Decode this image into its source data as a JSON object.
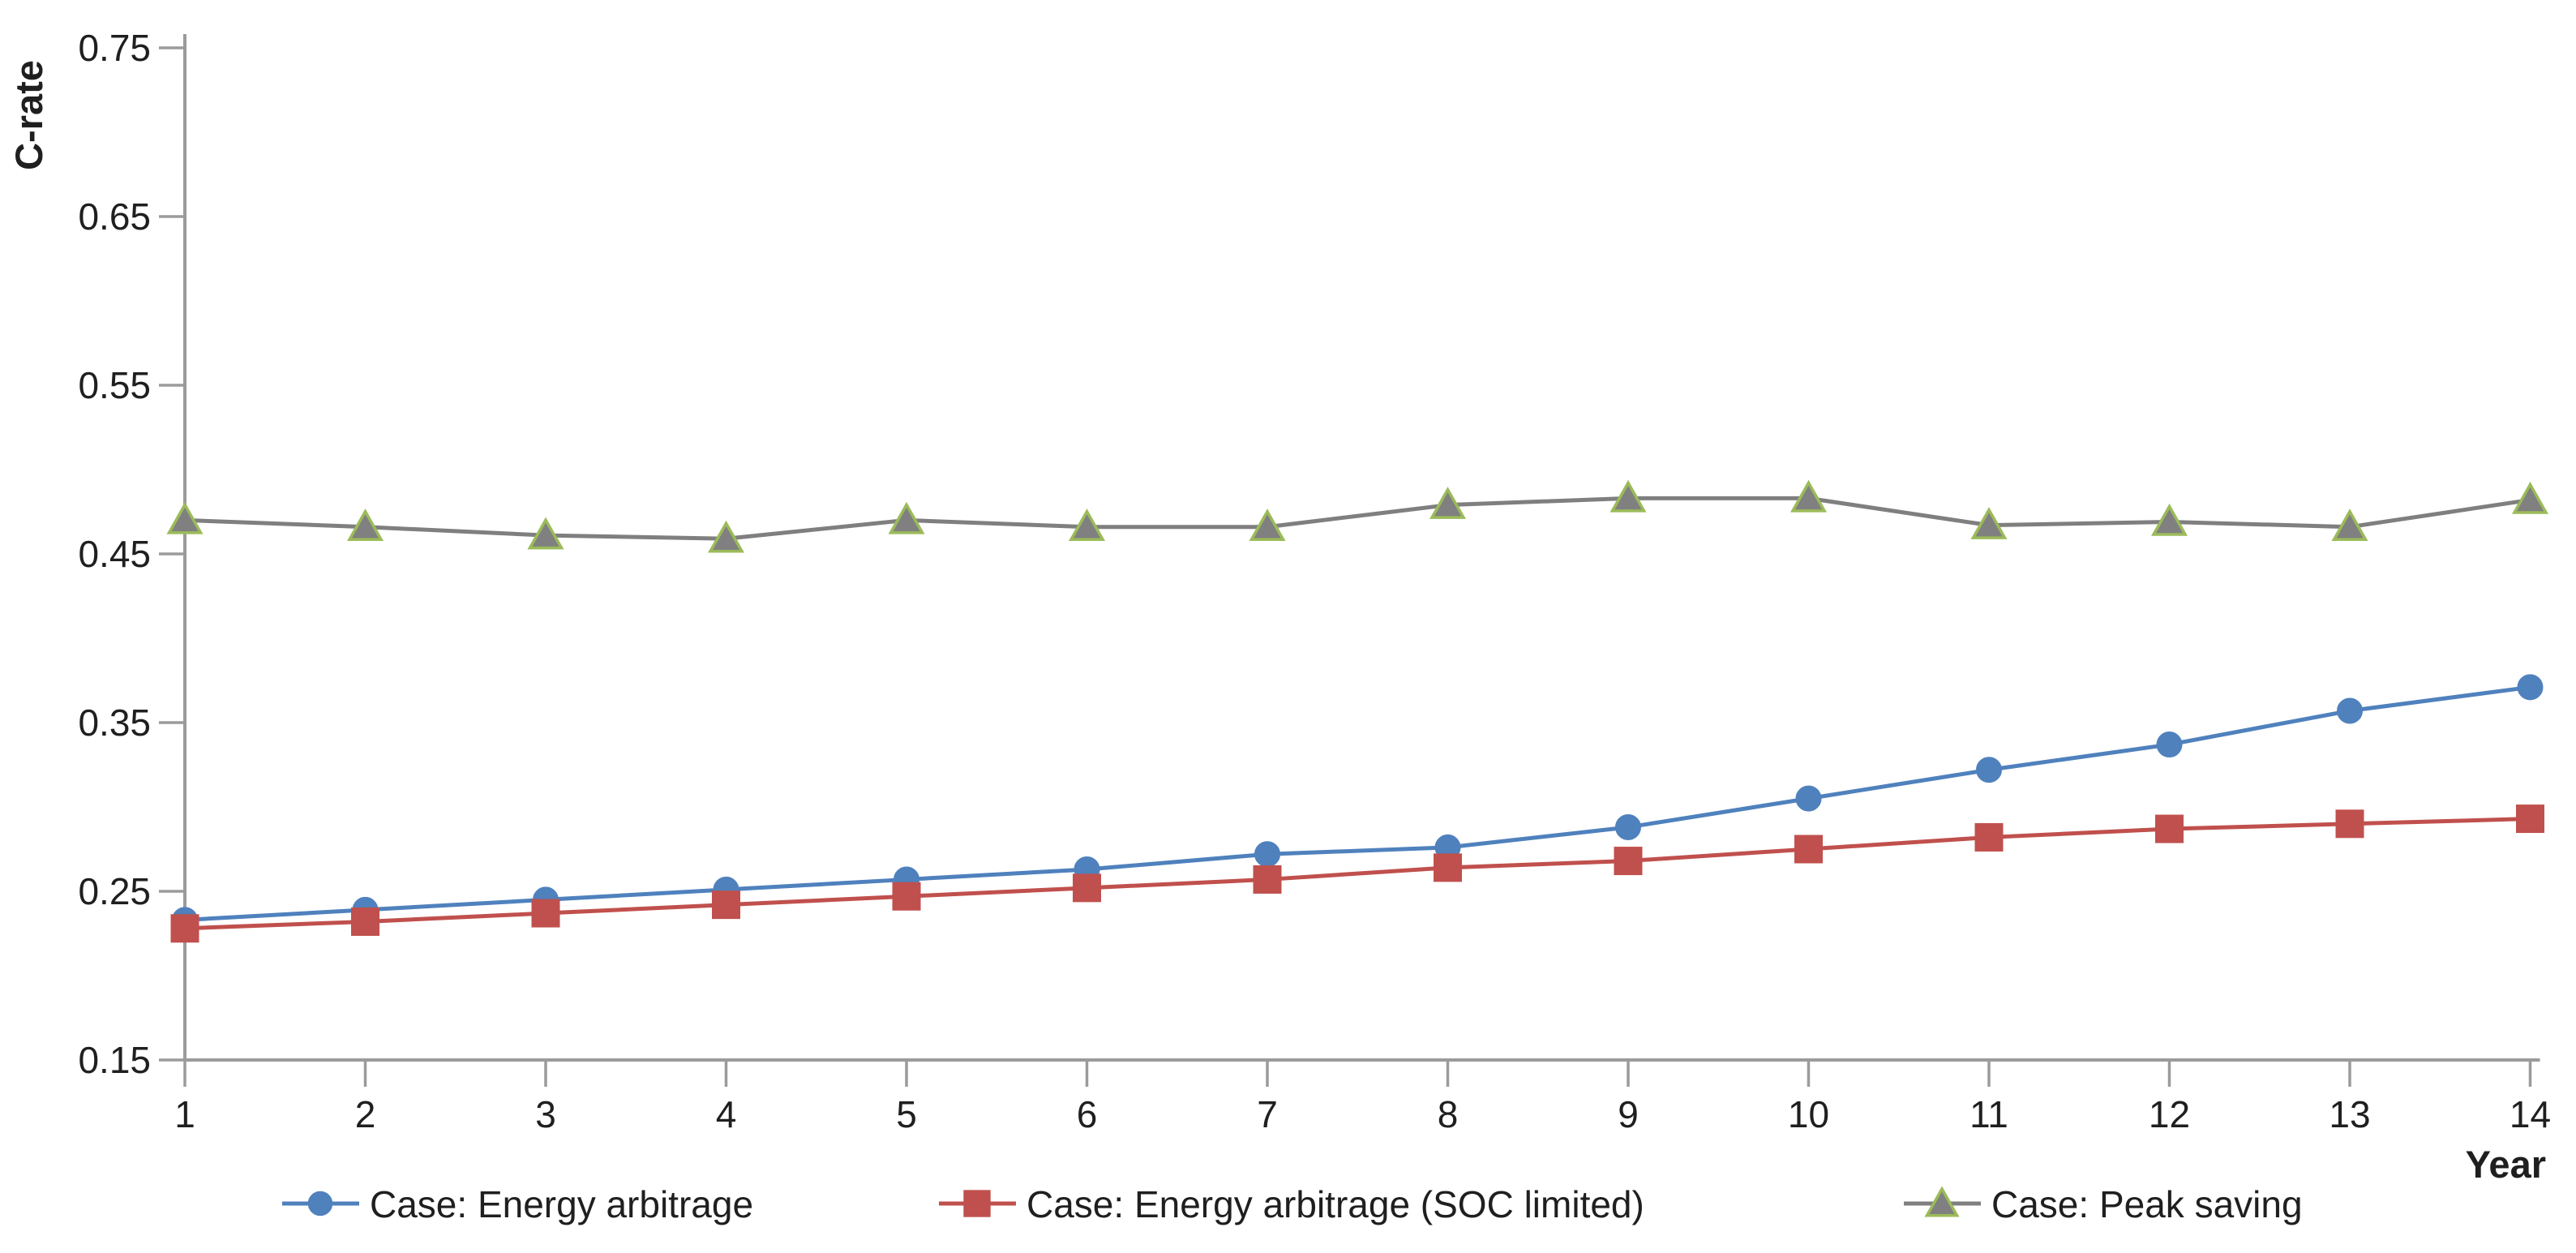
{
  "chart_data": {
    "type": "line",
    "title": "",
    "xlabel": "Year",
    "ylabel": "C-rate",
    "categories": [
      1,
      2,
      3,
      4,
      5,
      6,
      7,
      8,
      9,
      10,
      11,
      12,
      13,
      14
    ],
    "x_tick_labels": [
      "1",
      "2",
      "3",
      "4",
      "5",
      "6",
      "7",
      "8",
      "9",
      "10",
      "11",
      "12",
      "13",
      "14"
    ],
    "y_ticks": [
      0.15,
      0.25,
      0.35,
      0.45,
      0.55,
      0.65,
      0.75
    ],
    "y_tick_labels": [
      "0.15",
      "0.25",
      "0.35",
      "0.45",
      "0.55",
      "0.65",
      "0.75"
    ],
    "ylim": [
      0.15,
      0.75
    ],
    "grid": false,
    "legend_position": "bottom",
    "axis_color": "#9b9b9b",
    "text_color": "#1f1f1f",
    "series": [
      {
        "name": "Case: Energy arbitrage",
        "marker": "circle",
        "line_color": "#4F81BD",
        "marker_fill": "#4F81BD",
        "marker_stroke": "#4F81BD",
        "values": [
          0.233,
          0.239,
          0.245,
          0.251,
          0.257,
          0.263,
          0.272,
          0.276,
          0.288,
          0.305,
          0.322,
          0.337,
          0.357,
          0.371
        ]
      },
      {
        "name": "Case: Energy arbitrage (SOC limited)",
        "marker": "square",
        "line_color": "#C0504D",
        "marker_fill": "#C0504D",
        "marker_stroke": "#C0504D",
        "values": [
          0.228,
          0.232,
          0.237,
          0.242,
          0.247,
          0.252,
          0.257,
          0.264,
          0.268,
          0.275,
          0.282,
          0.287,
          0.29,
          0.293
        ]
      },
      {
        "name": "Case: Peak saving",
        "marker": "triangle",
        "line_color": "#7F7F7F",
        "marker_fill": "#808080",
        "marker_stroke": "#9BBB59",
        "values": [
          0.47,
          0.466,
          0.461,
          0.459,
          0.47,
          0.466,
          0.466,
          0.479,
          0.483,
          0.483,
          0.467,
          0.469,
          0.466,
          0.482
        ]
      }
    ]
  }
}
